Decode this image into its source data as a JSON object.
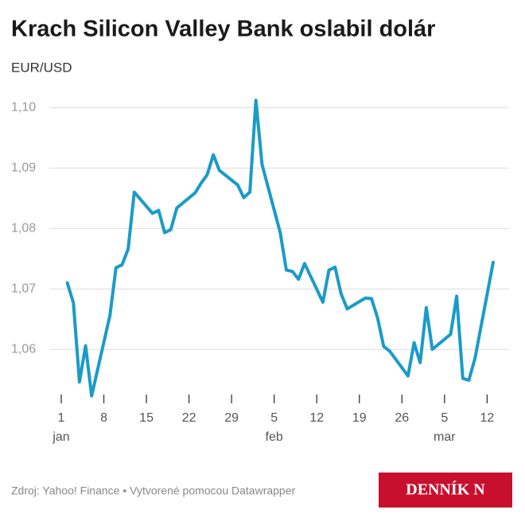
{
  "chart_data": {
    "type": "line",
    "title": "Krach Silicon Valley Bank oslabil dolár",
    "subtitle": "EUR/USD",
    "x": [
      2,
      3,
      4,
      5,
      6,
      9,
      10,
      11,
      12,
      13,
      16,
      17,
      18,
      19,
      20,
      23,
      24,
      25,
      26,
      27,
      30,
      31,
      32,
      33,
      34,
      37,
      38,
      39,
      40,
      41,
      44,
      45,
      46,
      47,
      48,
      51,
      52,
      53,
      54,
      55,
      58,
      59,
      60,
      61,
      62,
      65,
      66,
      67,
      68,
      69,
      72
    ],
    "series": [
      {
        "name": "EUR/USD",
        "color": "#1a9bc7",
        "values": [
          1.071,
          1.0677,
          1.0546,
          1.0606,
          1.0523,
          1.0656,
          1.0735,
          1.074,
          1.0766,
          1.086,
          1.0825,
          1.083,
          1.0793,
          1.0798,
          1.0834,
          1.0859,
          1.0875,
          1.0889,
          1.0922,
          1.0896,
          1.0872,
          1.0851,
          1.086,
          1.1012,
          1.0906,
          1.0793,
          1.0731,
          1.0729,
          1.0716,
          1.0742,
          1.0678,
          1.0731,
          1.0736,
          1.0692,
          1.0667,
          1.0685,
          1.0684,
          1.0652,
          1.0605,
          1.0597,
          1.0556,
          1.0611,
          1.0578,
          1.0669,
          1.06,
          1.0625,
          1.0688,
          1.0552,
          1.0549,
          1.0585,
          1.0744
        ]
      }
    ],
    "xlim": [
      1,
      72
    ],
    "xticks": [
      1,
      8,
      15,
      22,
      29,
      {
        "value": 36,
        "label": "5"
      },
      {
        "value": 43,
        "label": "12"
      },
      {
        "value": 50,
        "label": "19"
      },
      {
        "value": 57,
        "label": "26"
      },
      {
        "value": 64,
        "label": "5"
      },
      {
        "value": 71,
        "label": "12"
      }
    ],
    "month_labels": [
      {
        "value": 1,
        "label": "jan"
      },
      {
        "value": 36,
        "label": "feb"
      },
      {
        "value": 64,
        "label": "mar"
      }
    ],
    "ylim": [
      1.052,
      1.102
    ],
    "yticks": [
      {
        "value": 1.06,
        "label": "1,06"
      },
      {
        "value": 1.07,
        "label": "1,07"
      },
      {
        "value": 1.08,
        "label": "1,08"
      },
      {
        "value": 1.09,
        "label": "1,09"
      },
      {
        "value": 1.1,
        "label": "1,10"
      }
    ],
    "grid": true,
    "source": "Zdroj: Yahoo! Finance • Vytvorené pomocou Datawrapper",
    "logo": "DENNÍK N"
  }
}
